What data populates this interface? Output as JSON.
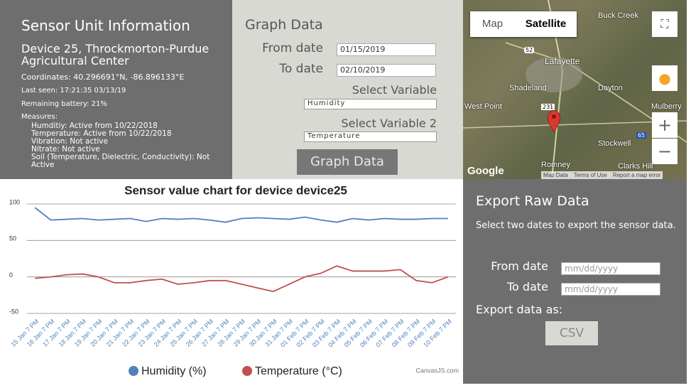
{
  "info_panel": {
    "title": "Sensor Unit Information",
    "device": "Device 25, Throckmorton-Purdue Agricultural Center",
    "coordinates": "Coordinates: 40.296691°N, -86.896133°E",
    "last_seen": "Last seen: 17:21:35 03/13/19",
    "battery": "Remaining battery: 21%",
    "measures_label": "Measures:",
    "measures": [
      "Humditiy: Active from 10/22/2018",
      "Temperature: Active from 10/22/2018",
      "Vibration: Not active",
      "Nitrate: Not active",
      "Soil (Temperature, Dielectric, Conductivity): Not Active"
    ]
  },
  "graph_panel": {
    "title": "Graph Data",
    "from_label": "From date",
    "from_value": "01/15/2019",
    "to_label": "To date",
    "to_value": "02/10/2019",
    "var1_label": "Select Variable",
    "var1_value": "Humidity",
    "var2_label": "Select Variable 2",
    "var2_value": "Temperature",
    "button": "Graph Data"
  },
  "map": {
    "tabs": [
      "Map",
      "Satellite"
    ],
    "places": [
      "Buck Creek",
      "Lafayette",
      "Shadeland",
      "Dayton",
      "West Point",
      "Mulberry",
      "Stockwell",
      "Romney",
      "Clarks Hill"
    ],
    "roads": [
      "52",
      "231",
      "65"
    ],
    "logo": "Google",
    "footer": [
      "Map Data",
      "Terms of Use",
      "Report a map error"
    ]
  },
  "export_panel": {
    "title": "Export Raw Data",
    "description": "Select two dates to export the sensor data.",
    "from_label": "From date",
    "to_label": "To date",
    "placeholder": "mm/dd/yyyy",
    "format_label": "Export data as:",
    "button": "CSV"
  },
  "chart_data": {
    "type": "line",
    "title": "Sensor value chart for device device25",
    "categories": [
      "15 Jan 7 PM",
      "16 Jan 7 PM",
      "17 Jan 7 PM",
      "18 Jan 7 PM",
      "19 Jan 7 PM",
      "20 Jan 7 PM",
      "21 Jan 7 PM",
      "22 Jan 7 PM",
      "23 Jan 7 PM",
      "24 Jan 7 PM",
      "25 Jan 7 PM",
      "26 Jan 7 PM",
      "27 Jan 7 PM",
      "28 Jan 7 PM",
      "29 Jan 7 PM",
      "30 Jan 7 PM",
      "31 Jan 7 PM",
      "01 Feb 7 PM",
      "02 Feb 7 PM",
      "03 Feb 7 PM",
      "04 Feb 7 PM",
      "05 Feb 7 PM",
      "06 Feb 7 PM",
      "07 Feb 7 PM",
      "08 Feb 7 PM",
      "09 Feb 7 PM",
      "10 Feb 7 PM"
    ],
    "series": [
      {
        "name": "Humidity (%)",
        "color": "#4f81bc",
        "values": [
          95,
          78,
          79,
          80,
          78,
          79,
          80,
          76,
          80,
          79,
          80,
          78,
          75,
          80,
          81,
          80,
          79,
          82,
          78,
          75,
          80,
          78,
          80,
          79,
          79,
          80,
          80
        ]
      },
      {
        "name": "Temperature (°C)",
        "color": "#c0504d",
        "values": [
          -2,
          0,
          3,
          4,
          0,
          -8,
          -8,
          -5,
          -3,
          -10,
          -8,
          -5,
          -5,
          -10,
          -15,
          -20,
          -10,
          0,
          5,
          15,
          8,
          8,
          8,
          10,
          -5,
          -8,
          0
        ]
      }
    ],
    "ylim": [
      -50,
      100
    ],
    "yticks": [
      -50,
      0,
      50,
      100
    ],
    "grid": true,
    "credit": "CanvasJS.com"
  }
}
